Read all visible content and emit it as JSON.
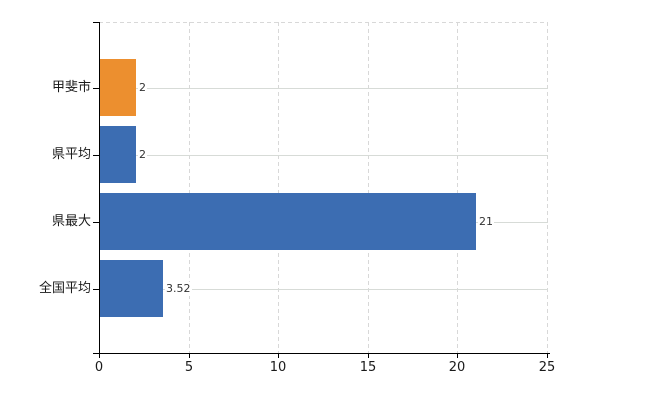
{
  "chart_data": {
    "type": "bar",
    "orientation": "horizontal",
    "title": "",
    "xlabel": "",
    "ylabel": "",
    "categories": [
      "甲斐市",
      "県平均",
      "県最大",
      "全国平均"
    ],
    "values": [
      2,
      2,
      21,
      3.52
    ],
    "value_labels": [
      "2",
      "2",
      "21",
      "3.52"
    ],
    "x_ticks": [
      "0",
      "5",
      "10",
      "15",
      "20",
      "25"
    ],
    "x_tick_values": [
      0,
      5,
      10,
      15,
      20,
      25
    ],
    "xlim": [
      0,
      25
    ],
    "grid": true,
    "legend": false,
    "series": [
      {
        "name": "",
        "values": [
          2,
          2,
          21,
          3.52
        ]
      }
    ],
    "bar_colors": [
      "#EC8F2F",
      "#3C6DB2",
      "#3C6DB2",
      "#3C6DB2"
    ]
  },
  "colors": {
    "bar_orange": "#EC8F2F",
    "bar_blue": "#3C6DB2",
    "grid_horizontal": "#d7dbd7",
    "grid_vertical": "#d8d8d8",
    "axis": "#000000",
    "text": "#1a1a1a",
    "value_text": "#333333",
    "background": "#ffffff"
  }
}
